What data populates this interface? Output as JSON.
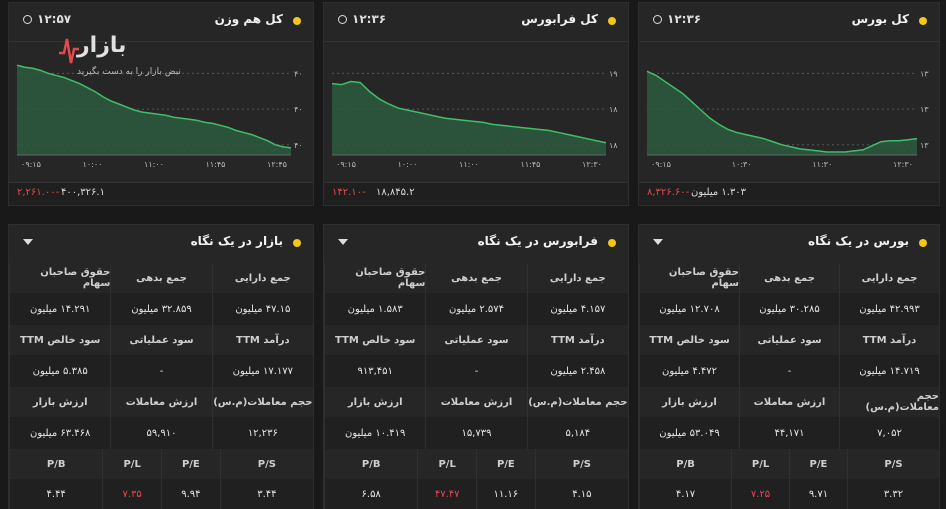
{
  "colors": {
    "accent": "#f5c518",
    "line": "#3fbf6a",
    "area": "#2d5a3f",
    "negative": "#e5484d"
  },
  "watermark": {
    "name": "بازار",
    "tagline": "نبض بازار را به دست بگیرید"
  },
  "charts": [
    {
      "id": "hamvazn",
      "title": "کل هم وزن",
      "time": "۱۲:۵۷",
      "x_ticks": [
        "۰۹:۱۵",
        "۱۰:۰۰",
        "۱۱:۰۰",
        "۱۱:۴۵",
        "۱۲:۴۵"
      ],
      "y_ticks": [
        "۴۰",
        "۴۰",
        "۴۰"
      ],
      "value": "۴۰۰,۳۲۶.۱",
      "change": "۲,۲۶۱.۰۰-",
      "series": [
        0.88,
        0.86,
        0.85,
        0.83,
        0.8,
        0.78,
        0.76,
        0.73,
        0.7,
        0.66,
        0.62,
        0.57,
        0.53,
        0.5,
        0.47,
        0.44,
        0.42,
        0.41,
        0.4,
        0.39,
        0.37,
        0.36,
        0.35,
        0.34,
        0.32,
        0.31,
        0.29,
        0.27,
        0.24,
        0.22,
        0.2,
        0.17,
        0.14,
        0.1,
        0.08,
        0.07
      ]
    },
    {
      "id": "farabourse",
      "title": "کل فرابورس",
      "time": "۱۲:۳۶",
      "x_ticks": [
        "۰۹:۱۵",
        "۱۰:۰۰",
        "۱۱:۰۰",
        "۱۱:۴۵",
        "۱۲:۳۰"
      ],
      "y_ticks": [
        "۱۹",
        "۱۸",
        "۱۸"
      ],
      "value": "۱۸,۸۴۵.۲",
      "change": "۱۴۲.۱۰-",
      "series": [
        0.7,
        0.69,
        0.72,
        0.71,
        0.62,
        0.55,
        0.5,
        0.46,
        0.44,
        0.42,
        0.4,
        0.38,
        0.36,
        0.35,
        0.34,
        0.33,
        0.32,
        0.3,
        0.29,
        0.28,
        0.27,
        0.26,
        0.25,
        0.24,
        0.22,
        0.2,
        0.18,
        0.16,
        0.14,
        0.12
      ]
    },
    {
      "id": "bourse",
      "title": "کل بورس",
      "time": "۱۲:۳۶",
      "x_ticks": [
        "۰۹:۱۵",
        "۱۰:۳۰",
        "۱۱:۳۰",
        "۱۲:۳۰"
      ],
      "y_ticks": [
        "۱۳",
        "۱۳",
        "۱۳"
      ],
      "value": "۱.۳۰۳ میلیون",
      "change": "۸,۳۲۶.۶۰-",
      "series": [
        0.82,
        0.78,
        0.72,
        0.66,
        0.6,
        0.52,
        0.44,
        0.36,
        0.3,
        0.25,
        0.22,
        0.2,
        0.18,
        0.16,
        0.13,
        0.1,
        0.08,
        0.06,
        0.05,
        0.04,
        0.03,
        0.03,
        0.03,
        0.04,
        0.05,
        0.09,
        0.13,
        0.14,
        0.14,
        0.15,
        0.16
      ]
    }
  ],
  "tables": [
    {
      "id": "bazar",
      "title": "بازار در یک نگاه",
      "rows": [
        [
          "جمع دارایی",
          "جمع بدهی",
          "حقوق صاحبان سهام"
        ],
        [
          "۴۷.۱۵ میلیون",
          "۳۲.۸۵۹ میلیون",
          "۱۴.۲۹۱ میلیون"
        ],
        [
          "درآمد TTM",
          "سود عملیاتی",
          "سود خالص TTM"
        ],
        [
          "۱۷.۱۷۷ میلیون",
          "-",
          "۵.۳۸۵ میلیون"
        ],
        [
          "حجم معاملات(م.س)",
          "ارزش معاملات",
          "ارزش بازار"
        ],
        [
          "۱۲,۲۳۶",
          "۵۹,۹۱۰",
          "۶۳.۴۶۸ میلیون"
        ]
      ],
      "ratio_labels": [
        "P/S",
        "P/E",
        "P/L",
        "P/B"
      ],
      "ratio_values": [
        "۳.۴۴",
        "۹.۹۴",
        "۷.۳۵",
        "۴.۴۴"
      ]
    },
    {
      "id": "fara",
      "title": "فرابورس در یک نگاه",
      "rows": [
        [
          "جمع دارایی",
          "جمع بدهی",
          "حقوق صاحبان سهام"
        ],
        [
          "۴.۱۵۷ میلیون",
          "۲.۵۷۴ میلیون",
          "۱.۵۸۳ میلیون"
        ],
        [
          "درآمد TTM",
          "سود عملیاتی",
          "سود خالص TTM"
        ],
        [
          "۲.۴۵۸ میلیون",
          "-",
          "۹۱۳,۴۵۱"
        ],
        [
          "حجم معاملات(م.س)",
          "ارزش معاملات",
          "ارزش بازار"
        ],
        [
          "۵,۱۸۴",
          "۱۵,۷۳۹",
          "۱۰.۴۱۹ میلیون"
        ]
      ],
      "ratio_labels": [
        "P/S",
        "P/E",
        "P/L",
        "P/B"
      ],
      "ratio_values": [
        "۴.۱۵",
        "۱۱.۱۶",
        "۴۷.۴۷",
        "۶.۵۸"
      ]
    },
    {
      "id": "bours",
      "title": "بورس در یک نگاه",
      "rows": [
        [
          "جمع دارایی",
          "جمع بدهی",
          "حقوق صاحبان سهام"
        ],
        [
          "۴۲.۹۹۳ میلیون",
          "۳۰.۲۸۵ میلیون",
          "۱۲.۷۰۸ میلیون"
        ],
        [
          "درآمد TTM",
          "سود عملیاتی",
          "سود خالص TTM"
        ],
        [
          "۱۴.۷۱۹ میلیون",
          "-",
          "۴.۴۷۲ میلیون"
        ],
        [
          "حجم معاملات(م.س)",
          "ارزش معاملات",
          "ارزش بازار"
        ],
        [
          "۷,۰۵۲",
          "۴۴,۱۷۱",
          "۵۳.۰۴۹ میلیون"
        ]
      ],
      "ratio_labels": [
        "P/S",
        "P/E",
        "P/L",
        "P/B"
      ],
      "ratio_values": [
        "۳.۳۲",
        "۹.۷۱",
        "۷.۲۵",
        "۴.۱۷"
      ]
    }
  ]
}
